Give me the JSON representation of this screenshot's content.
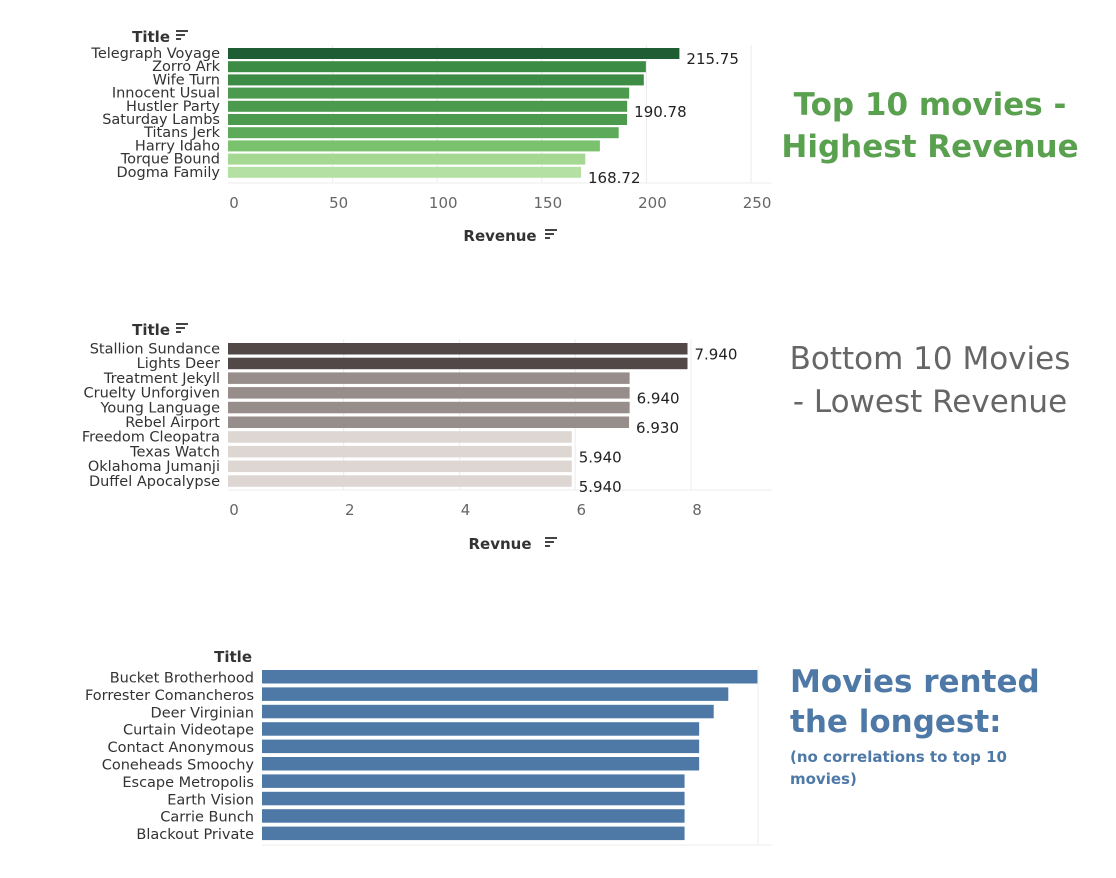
{
  "colors": {
    "green_scale": [
      "#1f5e35",
      "#3c8c45",
      "#3c8c45",
      "#4c9a4e",
      "#4c9a4e",
      "#4c9a4e",
      "#5dab5a",
      "#7bc26f",
      "#a5d893",
      "#b4e0a3"
    ],
    "grey_scale": [
      "#524848",
      "#524848",
      "#978d8a",
      "#978d8a",
      "#978d8a",
      "#978d8a",
      "#ddd6d3",
      "#ddd6d3",
      "#ddd6d3",
      "#ddd6d3"
    ],
    "blue": "#4e79a7",
    "caption_green": "#59a14f",
    "caption_grey": "#666666",
    "caption_blue": "#4e79a7"
  },
  "captions": {
    "top": "Top 10 movies - Highest Revenue",
    "bottom": "Bottom 10 Movies - Lowest Revenue",
    "longest_title": "Movies rented the longest:",
    "longest_note": "(no correlations to top 10 movies)"
  },
  "chart_data": [
    {
      "type": "bar",
      "orientation": "horizontal",
      "ylabel": "Title",
      "xlabel": "Revenue",
      "sort_icon": true,
      "categories": [
        "Telegraph Voyage",
        "Zorro Ark",
        "Wife Turn",
        "Innocent Usual",
        "Hustler Party",
        "Saturday Lambs",
        "Titans Jerk",
        "Harry Idaho",
        "Torque Bound",
        "Dogma Family"
      ],
      "values": [
        215.75,
        199.72,
        198.73,
        191.74,
        190.78,
        190.74,
        186.73,
        177.74,
        170.76,
        168.72
      ],
      "data_labels": {
        "0": "215.75",
        "4": "190.78",
        "9": "168.72"
      },
      "xlim": [
        0,
        260
      ],
      "xticks": [
        0,
        50,
        100,
        150,
        200,
        250
      ],
      "grid": true
    },
    {
      "type": "bar",
      "orientation": "horizontal",
      "ylabel": "Title",
      "xlabel": "Revnue",
      "sort_icon": true,
      "categories": [
        "Stallion Sundance",
        "Lights Deer",
        "Treatment Jekyll",
        "Cruelty Unforgiven",
        "Young Language",
        "Rebel Airport",
        "Freedom Cleopatra",
        "Texas Watch",
        "Oklahoma Jumanji",
        "Duffel Apocalypse"
      ],
      "values": [
        7.94,
        7.94,
        6.94,
        6.94,
        6.94,
        6.93,
        5.94,
        5.94,
        5.94,
        5.94
      ],
      "data_labels": {
        "0": "7.940",
        "3": "6.940",
        "5": "6.930",
        "7": "5.940",
        "9": "5.940"
      },
      "xlim": [
        0,
        9.4
      ],
      "xticks": [
        0,
        2,
        4,
        6,
        8
      ],
      "grid": true
    },
    {
      "type": "bar",
      "orientation": "horizontal",
      "ylabel": "Title",
      "xlabel": "",
      "sort_icon": false,
      "categories": [
        "Bucket Brotherhood",
        "Forrester Comancheros",
        "Deer Virginian",
        "Curtain Videotape",
        "Contact Anonymous",
        "Coneheads Smoochy",
        "Escape Metropolis",
        "Earth Vision",
        "Carrie Bunch",
        "Blackout Private"
      ],
      "values": [
        34,
        32,
        31,
        30,
        30,
        30,
        29,
        29,
        29,
        29
      ],
      "data_labels": {},
      "xlim": [
        0,
        35
      ],
      "xticks": [],
      "grid": true
    }
  ]
}
